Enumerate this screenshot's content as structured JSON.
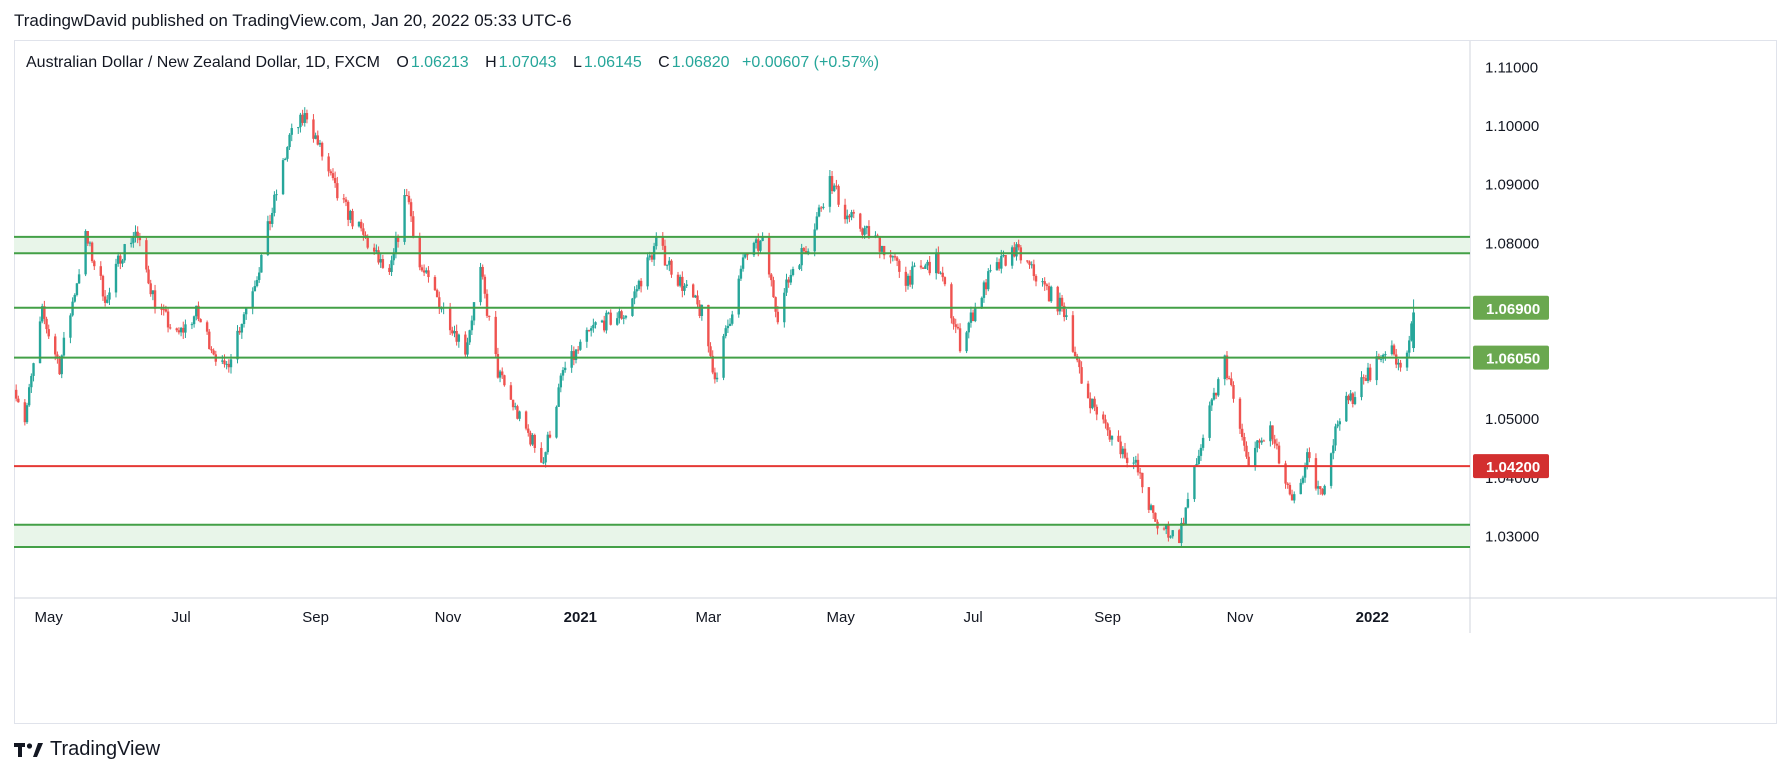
{
  "published": "TradingwDavid published on TradingView.com, Jan 20, 2022 05:33 UTC-6",
  "legend": {
    "symbol": "Australian Dollar / New Zealand Dollar, 1D, FXCM",
    "o_label": "O",
    "o_value": "1.06213",
    "h_label": "H",
    "h_value": "1.07043",
    "l_label": "L",
    "l_value": "1.06145",
    "c_label": "C",
    "c_value": "1.06820",
    "change": "+0.00607 (+0.57%)"
  },
  "footer": {
    "brand": "TradingView",
    "logo_icon": "tradingview-logo-icon"
  },
  "colors": {
    "up": "#26a69a",
    "down": "#ef5350",
    "zone_line": "#43a047",
    "zone_fill": "#e8f5e9",
    "support_red": "#e53935",
    "label_green": "#6aa84f",
    "label_red": "#d32f2f"
  },
  "chart_data": {
    "type": "candlestick",
    "title": "Australian Dollar / New Zealand Dollar, 1D, FXCM",
    "x_ticks": [
      {
        "label": "May",
        "date": "2020-05"
      },
      {
        "label": "Jul",
        "date": "2020-07"
      },
      {
        "label": "Sep",
        "date": "2020-09"
      },
      {
        "label": "Nov",
        "date": "2020-11"
      },
      {
        "label": "2021",
        "date": "2021-01",
        "bold": true
      },
      {
        "label": "Mar",
        "date": "2021-03"
      },
      {
        "label": "May",
        "date": "2021-05"
      },
      {
        "label": "Jul",
        "date": "2021-07"
      },
      {
        "label": "Sep",
        "date": "2021-09"
      },
      {
        "label": "Nov",
        "date": "2021-11"
      },
      {
        "label": "2022",
        "date": "2022-01",
        "bold": true
      }
    ],
    "y_ticks": [
      "1.11000",
      "1.10000",
      "1.09000",
      "1.08000",
      "1.05000",
      "1.04000",
      "1.03000"
    ],
    "ylim": [
      1.0195,
      1.1145
    ],
    "xlim": [
      "2020-04-15",
      "2022-02-15"
    ],
    "grid": false,
    "horizontal_levels": [
      {
        "price": 1.0811,
        "color": "green"
      },
      {
        "price": 1.0783,
        "color": "green"
      },
      {
        "price": 1.069,
        "color": "green",
        "label": "1.06900"
      },
      {
        "price": 1.0605,
        "color": "green",
        "label": "1.06050"
      },
      {
        "price": 1.042,
        "color": "red",
        "label": "1.04200"
      },
      {
        "price": 1.032,
        "color": "green"
      },
      {
        "price": 1.0282,
        "color": "green"
      }
    ],
    "zones": [
      [
        1.0783,
        1.0811
      ],
      [
        1.0282,
        1.032
      ]
    ],
    "price_path": [
      {
        "date": "2020-04-16",
        "close": 1.055
      },
      {
        "date": "2020-04-20",
        "close": 1.05
      },
      {
        "date": "2020-04-28",
        "close": 1.068
      },
      {
        "date": "2020-05-06",
        "close": 1.059
      },
      {
        "date": "2020-05-18",
        "close": 1.081
      },
      {
        "date": "2020-05-28",
        "close": 1.07
      },
      {
        "date": "2020-06-03",
        "close": 1.078
      },
      {
        "date": "2020-06-10",
        "close": 1.082
      },
      {
        "date": "2020-06-19",
        "close": 1.07
      },
      {
        "date": "2020-06-29",
        "close": 1.064
      },
      {
        "date": "2020-07-08",
        "close": 1.068
      },
      {
        "date": "2020-07-21",
        "close": 1.058
      },
      {
        "date": "2020-08-06",
        "close": 1.076
      },
      {
        "date": "2020-08-20",
        "close": 1.098
      },
      {
        "date": "2020-08-28",
        "close": 1.102
      },
      {
        "date": "2020-09-11",
        "close": 1.088
      },
      {
        "date": "2020-09-25",
        "close": 1.08
      },
      {
        "date": "2020-10-05",
        "close": 1.074
      },
      {
        "date": "2020-10-13",
        "close": 1.089
      },
      {
        "date": "2020-10-19",
        "close": 1.076
      },
      {
        "date": "2020-10-28",
        "close": 1.07
      },
      {
        "date": "2020-11-09",
        "close": 1.062
      },
      {
        "date": "2020-11-16",
        "close": 1.075
      },
      {
        "date": "2020-11-24",
        "close": 1.058
      },
      {
        "date": "2020-12-04",
        "close": 1.05
      },
      {
        "date": "2020-12-15",
        "close": 1.043
      },
      {
        "date": "2020-12-24",
        "close": 1.058
      },
      {
        "date": "2021-01-08",
        "close": 1.066
      },
      {
        "date": "2021-01-22",
        "close": 1.068
      },
      {
        "date": "2021-02-05",
        "close": 1.08
      },
      {
        "date": "2021-02-15",
        "close": 1.074
      },
      {
        "date": "2021-02-26",
        "close": 1.068
      },
      {
        "date": "2021-03-04",
        "close": 1.057
      },
      {
        "date": "2021-03-18",
        "close": 1.078
      },
      {
        "date": "2021-03-26",
        "close": 1.08
      },
      {
        "date": "2021-04-02",
        "close": 1.068
      },
      {
        "date": "2021-04-09",
        "close": 1.076
      },
      {
        "date": "2021-04-16",
        "close": 1.08
      },
      {
        "date": "2021-04-26",
        "close": 1.091
      },
      {
        "date": "2021-05-03",
        "close": 1.085
      },
      {
        "date": "2021-05-19",
        "close": 1.08
      },
      {
        "date": "2021-05-31",
        "close": 1.074
      },
      {
        "date": "2021-06-14",
        "close": 1.077
      },
      {
        "date": "2021-06-25",
        "close": 1.063
      },
      {
        "date": "2021-07-08",
        "close": 1.074
      },
      {
        "date": "2021-07-20",
        "close": 1.079
      },
      {
        "date": "2021-08-04",
        "close": 1.072
      },
      {
        "date": "2021-08-13",
        "close": 1.068
      },
      {
        "date": "2021-08-20",
        "close": 1.056
      },
      {
        "date": "2021-09-01",
        "close": 1.048
      },
      {
        "date": "2021-09-14",
        "close": 1.042
      },
      {
        "date": "2021-09-23",
        "close": 1.032
      },
      {
        "date": "2021-10-04",
        "close": 1.03
      },
      {
        "date": "2021-10-15",
        "close": 1.047
      },
      {
        "date": "2021-10-25",
        "close": 1.06
      },
      {
        "date": "2021-11-04",
        "close": 1.043
      },
      {
        "date": "2021-11-15",
        "close": 1.048
      },
      {
        "date": "2021-11-25",
        "close": 1.035
      },
      {
        "date": "2021-12-02",
        "close": 1.043
      },
      {
        "date": "2021-12-08",
        "close": 1.037
      },
      {
        "date": "2021-12-17",
        "close": 1.051
      },
      {
        "date": "2021-12-29",
        "close": 1.057
      },
      {
        "date": "2022-01-07",
        "close": 1.062
      },
      {
        "date": "2022-01-14",
        "close": 1.06
      },
      {
        "date": "2022-01-18",
        "close": 1.0621
      },
      {
        "date": "2022-01-20",
        "open": 1.06213,
        "high": 1.07043,
        "low": 1.06145,
        "close": 1.0682
      }
    ]
  }
}
